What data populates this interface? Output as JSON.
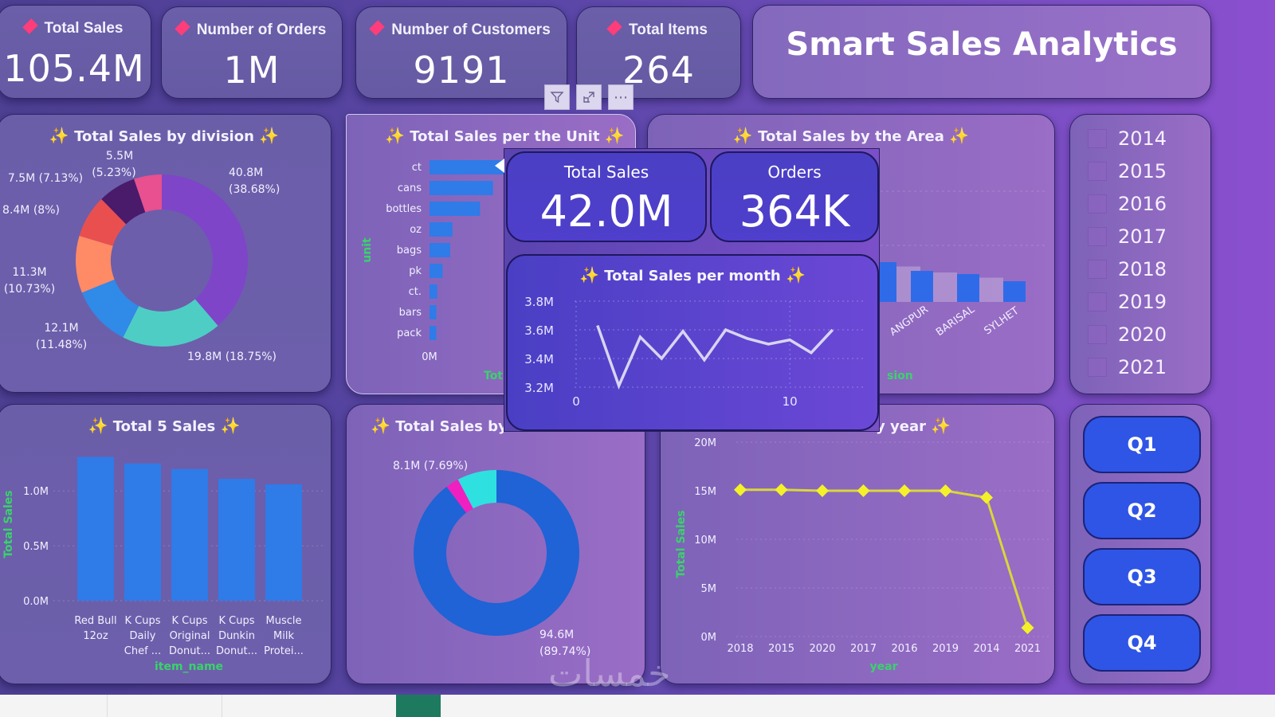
{
  "kpis": [
    {
      "label": "Total Sales",
      "value": "105.4M"
    },
    {
      "label": "Number of Orders",
      "value": "1M"
    },
    {
      "label": "Number of Customers",
      "value": "9191"
    },
    {
      "label": "Total Items",
      "value": "264"
    }
  ],
  "dashboard_title": "Smart Sales Analytics",
  "toolbar": {
    "filter_icon": "funnel",
    "focus_icon": "expand",
    "more_icon": "⋯"
  },
  "sparkle": "✨",
  "overlay": {
    "total_sales_label": "Total Sales",
    "total_sales_value": "42.0M",
    "orders_label": "Orders",
    "orders_value": "364K"
  },
  "year_slicer": [
    "2014",
    "2015",
    "2016",
    "2017",
    "2018",
    "2019",
    "2020",
    "2021"
  ],
  "quarter_buttons": [
    "Q1",
    "Q2",
    "Q3",
    "Q4"
  ],
  "watermark": "خمسات",
  "colors": {
    "kpi_diamond": "#ff3d7a",
    "bar_blue": "#2f7be8",
    "line_yellow": "#f4f12a",
    "axis_title_green": "#39d36a",
    "quarter_button": "#2f55e6"
  },
  "chart_data": [
    {
      "id": "division",
      "type": "pie",
      "title": "Total Sales by division",
      "donut": true,
      "slices": [
        {
          "label": "40.8M",
          "pct": "(38.68%)",
          "value": 40.8,
          "percent": 38.68,
          "color": "#7e45c9"
        },
        {
          "label": "19.8M (18.75%)",
          "pct": "",
          "value": 19.8,
          "percent": 18.75,
          "color": "#4ecdc4"
        },
        {
          "label": "12.1M",
          "pct": "(11.48%)",
          "value": 12.1,
          "percent": 11.48,
          "color": "#2f8ae8"
        },
        {
          "label": "11.3M",
          "pct": "(10.73%)",
          "value": 11.3,
          "percent": 10.73,
          "color": "#ff8a66"
        },
        {
          "label": "8.4M (8%)",
          "pct": "",
          "value": 8.4,
          "percent": 8.0,
          "color": "#e94f4f"
        },
        {
          "label": "7.5M (7.13%)",
          "pct": "",
          "value": 7.5,
          "percent": 7.13,
          "color": "#4a1a6b"
        },
        {
          "label": "5.5M",
          "pct": "(5.23%)",
          "value": 5.5,
          "percent": 5.23,
          "color": "#e8508f"
        }
      ]
    },
    {
      "id": "unit",
      "type": "bar",
      "orientation": "horizontal",
      "title": "Total Sales per the Unit",
      "ylabel": "unit",
      "xlabel": "Tot",
      "x_tick_labels": [
        "0M"
      ],
      "categories": [
        "ct",
        "cans",
        "bottles",
        "oz",
        "bags",
        "pk",
        "ct.",
        "bars",
        "pack"
      ],
      "relative_values": [
        1.0,
        0.83,
        0.66,
        0.3,
        0.27,
        0.17,
        0.1,
        0.09,
        0.09
      ]
    },
    {
      "id": "area",
      "type": "bar",
      "title": "Total Sales by the Area",
      "xlabel": "sion",
      "visible_categories": [
        "ANGPUR",
        "BARISAL",
        "SYLHET"
      ],
      "relative_values": [
        1.0,
        0.78,
        0.7,
        0.52
      ]
    },
    {
      "id": "month",
      "type": "line",
      "title": "Total Sales per month",
      "x": [
        1,
        2,
        3,
        4,
        5,
        6,
        7,
        8,
        9,
        10,
        11,
        12
      ],
      "values": [
        3.63,
        3.21,
        3.55,
        3.4,
        3.59,
        3.39,
        3.6,
        3.54,
        3.5,
        3.53,
        3.44,
        3.6
      ],
      "unit": "M",
      "y_ticks": [
        "3.8M",
        "3.6M",
        "3.4M",
        "3.2M"
      ],
      "x_ticks": [
        "0",
        "10"
      ],
      "ylim": [
        3.2,
        3.8
      ],
      "xlim": [
        0,
        13.5
      ]
    },
    {
      "id": "top5",
      "type": "bar",
      "title": "Total 5 Sales",
      "xlabel": "item_name",
      "ylabel": "Total Sales",
      "categories": [
        [
          "Red Bull",
          "12oz"
        ],
        [
          "K Cups",
          "Daily",
          "Chef ..."
        ],
        [
          "K Cups",
          "Original",
          "Donut..."
        ],
        [
          "K Cups",
          "Dunkin",
          "Donut..."
        ],
        [
          "Muscle",
          "Milk",
          "Protei..."
        ]
      ],
      "values": [
        1.31,
        1.25,
        1.2,
        1.11,
        1.06
      ],
      "unit": "M",
      "y_ticks": [
        "1.0M",
        "0.5M",
        "0.0M"
      ],
      "ylim": [
        0,
        1.35
      ]
    },
    {
      "id": "payment",
      "type": "pie",
      "donut": true,
      "title": "Total Sales by P",
      "slices": [
        {
          "label": "94.6M",
          "pct": "(89.74%)",
          "value": 94.6,
          "percent": 89.74,
          "color": "#1f63d6"
        },
        {
          "label": "",
          "pct": "",
          "value": 2.7,
          "percent": 2.57,
          "color": "#f020c0"
        },
        {
          "label": "8.1M (7.69%)",
          "pct": "",
          "value": 8.1,
          "percent": 7.69,
          "color": "#2fe0e0"
        }
      ]
    },
    {
      "id": "year",
      "type": "line",
      "title": "y year",
      "xlabel": "year",
      "ylabel": "Total Sales",
      "categories": [
        "2018",
        "2015",
        "2020",
        "2017",
        "2016",
        "2019",
        "2014",
        "2021"
      ],
      "values": [
        15.1,
        15.1,
        15.0,
        15.0,
        15.0,
        15.0,
        14.3,
        0.9
      ],
      "unit": "M",
      "y_ticks": [
        "20M",
        "15M",
        "10M",
        "5M",
        "0M"
      ],
      "ylim": [
        0,
        20
      ]
    }
  ]
}
